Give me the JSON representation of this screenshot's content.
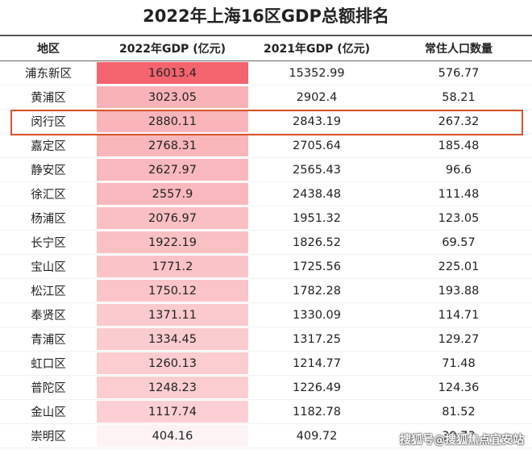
{
  "title": "2022年上海16区GDP总额排名",
  "headers": [
    "地区",
    "2022年GDP (亿元)",
    "2021年GDP (亿元)",
    "常住人口数量"
  ],
  "rows": [
    {
      "district": "浦东新区",
      "gdp2022": "16013.4",
      "gdp2021": "15352.99",
      "population": "576.77"
    },
    {
      "district": "黄浦区",
      "gdp2022": "3023.05",
      "gdp2021": "2902.4",
      "population": "58.21"
    },
    {
      "district": "闵行区",
      "gdp2022": "2880.11",
      "gdp2021": "2843.19",
      "population": "267.32"
    },
    {
      "district": "嘉定区",
      "gdp2022": "2768.31",
      "gdp2021": "2705.64",
      "population": "185.48"
    },
    {
      "district": "静安区",
      "gdp2022": "2627.97",
      "gdp2021": "2565.43",
      "population": "96.6"
    },
    {
      "district": "徐汇区",
      "gdp2022": "2557.9",
      "gdp2021": "2438.48",
      "population": "111.48"
    },
    {
      "district": "杨浦区",
      "gdp2022": "2076.97",
      "gdp2021": "1951.32",
      "population": "123.05"
    },
    {
      "district": "长宁区",
      "gdp2022": "1922.19",
      "gdp2021": "1826.52",
      "population": "69.57"
    },
    {
      "district": "宝山区",
      "gdp2022": "1771.2",
      "gdp2021": "1725.56",
      "population": "225.01"
    },
    {
      "district": "松江区",
      "gdp2022": "1750.12",
      "gdp2021": "1782.28",
      "population": "193.88"
    },
    {
      "district": "奉贤区",
      "gdp2022": "1371.11",
      "gdp2021": "1330.09",
      "population": "114.71"
    },
    {
      "district": "青浦区",
      "gdp2022": "1334.45",
      "gdp2021": "1317.25",
      "population": "129.27"
    },
    {
      "district": "虹口区",
      "gdp2022": "1260.13",
      "gdp2021": "1214.77",
      "population": "71.48"
    },
    {
      "district": "普陀区",
      "gdp2022": "1248.23",
      "gdp2021": "1226.49",
      "population": "124.36"
    },
    {
      "district": "金山区",
      "gdp2022": "1117.74",
      "gdp2021": "1182.78",
      "population": "81.52"
    },
    {
      "district": "崇明区",
      "gdp2022": "404.16",
      "gdp2021": "409.72",
      "population": "39.73"
    }
  ],
  "highlighted_row": 2,
  "colors": {
    "bar_max": "#f4646f",
    "bar_min": "#fdf3f4",
    "highlight_border": "#d9542b"
  },
  "watermark": "搜狐号@搜狐焦点宜安站"
}
